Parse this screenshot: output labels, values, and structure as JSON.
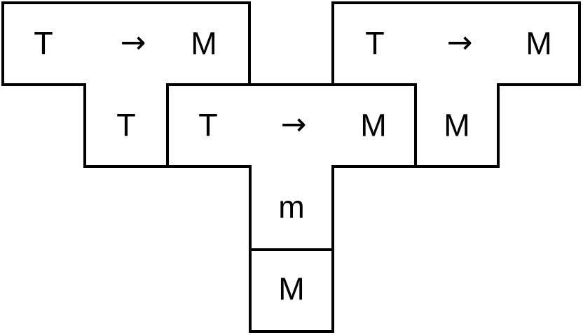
{
  "top_left_shape": {
    "left": "T",
    "arrow": "→",
    "right": "M",
    "below": "T"
  },
  "top_right_shape": {
    "left": "T",
    "arrow": "→",
    "right": "M",
    "below": "M"
  },
  "middle_shape": {
    "left": "T",
    "arrow": "→",
    "right": "M",
    "below": "m"
  },
  "bottom_cell": {
    "label": "M"
  },
  "colors": {
    "stroke": "#000000",
    "background": "#ffffff"
  }
}
